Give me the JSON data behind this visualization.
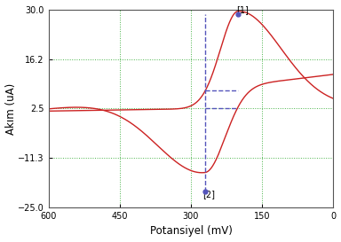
{
  "xlabel": "Potansiyel (mV)",
  "ylabel": "Akım (uA)",
  "xlim": [
    600,
    0
  ],
  "ylim": [
    -25,
    30
  ],
  "yticks": [
    -25.0,
    -11.3,
    2.5,
    16.2,
    30.0
  ],
  "xticks": [
    600.0,
    450.0,
    300.0,
    150.0,
    0.0
  ],
  "peak1_x": 200,
  "peak1_y": 28.8,
  "peak2_x": 270,
  "peak2_y": -20.5,
  "blue_h1_y": 7.5,
  "blue_h2_y": 2.5,
  "blue_line_color": "#5555bb",
  "red_curve_color": "#cc2222",
  "grid_color": "#33aa33",
  "background_color": "#ffffff",
  "label1": "[1]",
  "label2": "[2]"
}
